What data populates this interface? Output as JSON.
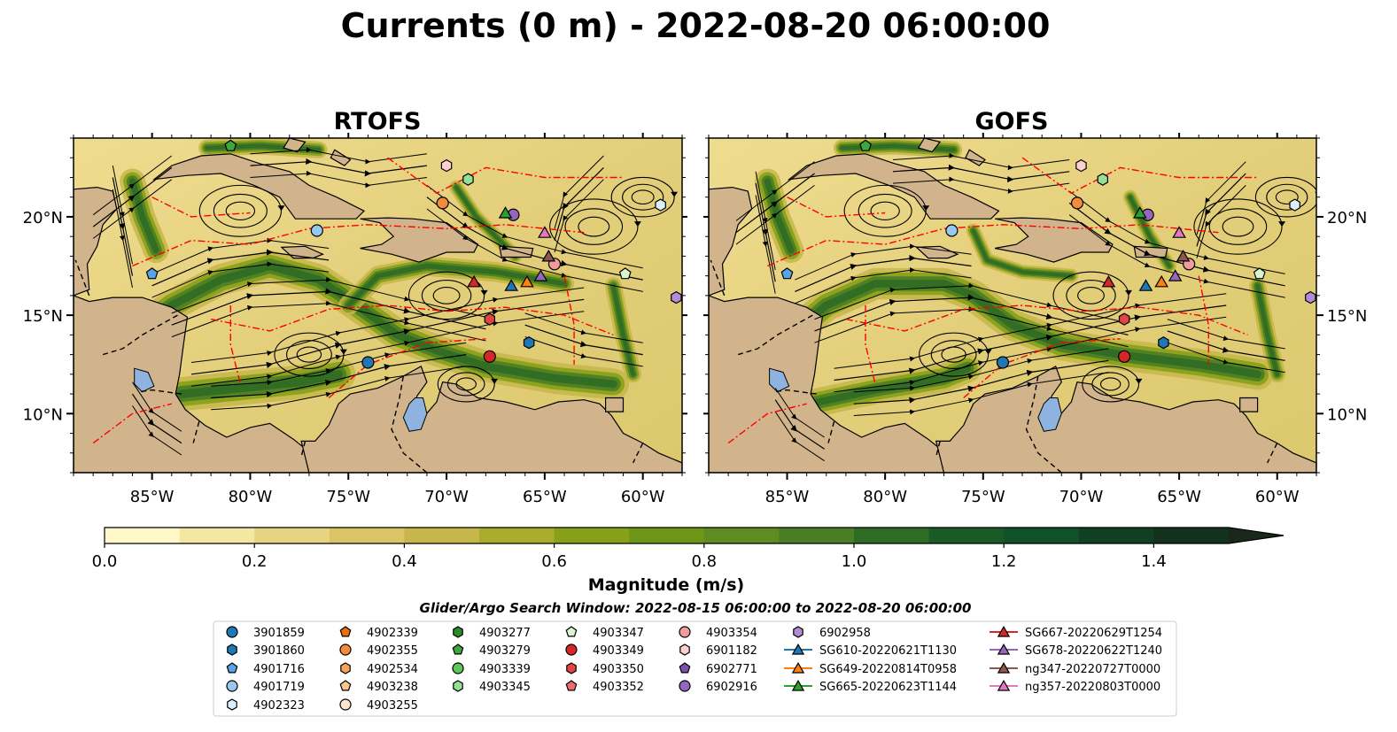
{
  "figure": {
    "title": "Currents (0 m) - 2022-08-20 06:00:00"
  },
  "panels": [
    {
      "title": "RTOFS"
    },
    {
      "title": "GOFS"
    }
  ],
  "axes": {
    "x_ticks": [
      "85°W",
      "80°W",
      "75°W",
      "70°W",
      "65°W",
      "60°W"
    ],
    "y_ticks": [
      "20°N",
      "15°N",
      "10°N"
    ],
    "lon_range": [
      -89,
      -58
    ],
    "lat_range": [
      7,
      24
    ]
  },
  "colorbar": {
    "label": "Magnitude (m/s)",
    "ticks": [
      "0.0",
      "0.2",
      "0.4",
      "0.6",
      "0.8",
      "1.0",
      "1.2",
      "1.4"
    ],
    "range": [
      0.0,
      1.5
    ],
    "colors": [
      "#fff8c8",
      "#f4e7a2",
      "#e7d483",
      "#d9c565",
      "#c6b64b",
      "#a8ad2c",
      "#86a118",
      "#6d9517",
      "#5e8c21",
      "#4a7d24",
      "#2e6b24",
      "#1a5a25",
      "#10502a",
      "#113f22",
      "#13321d",
      "#1a271b"
    ]
  },
  "search_window": "Glider/Argo Search Window: 2022-08-15 06:00:00 to 2022-08-20 06:00:00",
  "legend": [
    [
      {
        "label": "3901859",
        "marker": "circle",
        "color": "#1f77b4"
      },
      {
        "label": "3901860",
        "marker": "hexagon",
        "color": "#1f77b4"
      },
      {
        "label": "4901716",
        "marker": "pentagon",
        "color": "#58a4e8"
      },
      {
        "label": "4901719",
        "marker": "circle",
        "color": "#98c8f0"
      },
      {
        "label": "4902323",
        "marker": "hexagon",
        "color": "#dcedfb"
      }
    ],
    [
      {
        "label": "4902339",
        "marker": "pentagon",
        "color": "#e8700d"
      },
      {
        "label": "4902355",
        "marker": "circle",
        "color": "#f28b3a"
      },
      {
        "label": "4902534",
        "marker": "hexagon",
        "color": "#f7a35c"
      },
      {
        "label": "4903238",
        "marker": "pentagon",
        "color": "#fbc690"
      },
      {
        "label": "4903255",
        "marker": "circle",
        "color": "#fde6cc"
      }
    ],
    [
      {
        "label": "4903277",
        "marker": "hexagon",
        "color": "#2a8a2a"
      },
      {
        "label": "4903279",
        "marker": "pentagon",
        "color": "#3da83d"
      },
      {
        "label": "4903339",
        "marker": "circle",
        "color": "#5ac85a"
      },
      {
        "label": "4903345",
        "marker": "hexagon",
        "color": "#96e096"
      }
    ],
    [
      {
        "label": "4903347",
        "marker": "pentagon",
        "color": "#d8f5cf"
      },
      {
        "label": "4903349",
        "marker": "circle",
        "color": "#d62728"
      },
      {
        "label": "4903350",
        "marker": "hexagon",
        "color": "#e04545"
      },
      {
        "label": "4903352",
        "marker": "pentagon",
        "color": "#ec6d6d"
      }
    ],
    [
      {
        "label": "4903354",
        "marker": "circle",
        "color": "#f29b9b"
      },
      {
        "label": "6901182",
        "marker": "hexagon",
        "color": "#fbd0d0"
      },
      {
        "label": "6902771",
        "marker": "pentagon",
        "color": "#7f4fb0"
      },
      {
        "label": "6902916",
        "marker": "circle",
        "color": "#9467bd"
      }
    ],
    [
      {
        "label": "6902958",
        "marker": "hexagon",
        "color": "#b08bd6"
      },
      {
        "label": "SG610-20220621T1130",
        "marker": "triangle",
        "color": "#1f77b4",
        "line": true
      },
      {
        "label": "SG649-20220814T0958",
        "marker": "triangle",
        "color": "#ff7f0e",
        "line": true
      },
      {
        "label": "SG665-20220623T1144",
        "marker": "triangle",
        "color": "#2ca02c",
        "line": true
      }
    ],
    [
      {
        "label": "SG667-20220629T1254",
        "marker": "triangle",
        "color": "#d62728",
        "line": true
      },
      {
        "label": "SG678-20220622T1240",
        "marker": "triangle",
        "color": "#9467bd",
        "line": true
      },
      {
        "label": "ng347-20220727T0000",
        "marker": "triangle",
        "color": "#8c564b",
        "line": true
      },
      {
        "label": "ng357-20220803T0000",
        "marker": "triangle",
        "color": "#e377c2",
        "line": true
      }
    ]
  ],
  "platforms": [
    {
      "label": "3901859",
      "marker": "circle",
      "color": "#1f77b4",
      "lon": -74.0,
      "lat": 12.6
    },
    {
      "label": "3901860",
      "marker": "hexagon",
      "color": "#1f77b4",
      "lon": -65.8,
      "lat": 13.6
    },
    {
      "label": "4901716",
      "marker": "pentagon",
      "color": "#58a4e8",
      "lon": -85.0,
      "lat": 17.1
    },
    {
      "label": "4901719",
      "marker": "circle",
      "color": "#98c8f0",
      "lon": -76.6,
      "lat": 19.3
    },
    {
      "label": "4902323",
      "marker": "hexagon",
      "color": "#dcedfb",
      "lon": -59.1,
      "lat": 20.6
    },
    {
      "label": "4902355",
      "marker": "circle",
      "color": "#f28b3a",
      "lon": -70.2,
      "lat": 20.7
    },
    {
      "label": "4903279",
      "marker": "pentagon",
      "color": "#3da83d",
      "lon": -81.0,
      "lat": 23.6
    },
    {
      "label": "4903345",
      "marker": "hexagon",
      "color": "#96e096",
      "lon": -68.9,
      "lat": 21.9
    },
    {
      "label": "4903347",
      "marker": "pentagon",
      "color": "#d8f5cf",
      "lon": -60.9,
      "lat": 17.1
    },
    {
      "label": "4903349",
      "marker": "circle",
      "color": "#d62728",
      "lon": -67.8,
      "lat": 12.9
    },
    {
      "label": "4903350",
      "marker": "hexagon",
      "color": "#e04545",
      "lon": -67.8,
      "lat": 14.8
    },
    {
      "label": "6901182",
      "marker": "hexagon",
      "color": "#fbd0d0",
      "lon": -70.0,
      "lat": 22.6
    },
    {
      "label": "6902916",
      "marker": "circle",
      "color": "#9467bd",
      "lon": -66.6,
      "lat": 20.1
    },
    {
      "label": "6902958",
      "marker": "hexagon",
      "color": "#b08bd6",
      "lon": -58.3,
      "lat": 15.9
    },
    {
      "label": "4903354",
      "marker": "circle",
      "color": "#f29b9b",
      "lon": -64.5,
      "lat": 17.6
    },
    {
      "label": "SG610-20220621T1130",
      "marker": "triangle",
      "color": "#1f77b4",
      "lon": -66.7,
      "lat": 16.5
    },
    {
      "label": "SG649-20220814T0958",
      "marker": "triangle",
      "color": "#ff7f0e",
      "lon": -65.9,
      "lat": 16.7
    },
    {
      "label": "SG665-20220623T1144",
      "marker": "triangle",
      "color": "#2ca02c",
      "lon": -67.0,
      "lat": 20.2
    },
    {
      "label": "SG667-20220629T1254",
      "marker": "triangle",
      "color": "#d62728",
      "lon": -68.6,
      "lat": 16.7
    },
    {
      "label": "SG678-20220622T1240",
      "marker": "triangle",
      "color": "#9467bd",
      "lon": -65.2,
      "lat": 17.0
    },
    {
      "label": "ng347-20220727T0000",
      "marker": "triangle",
      "color": "#8c564b",
      "lon": -64.8,
      "lat": 18.0
    },
    {
      "label": "ng357-20220803T0000",
      "marker": "triangle",
      "color": "#e377c2",
      "lon": -65.0,
      "lat": 19.2
    }
  ]
}
